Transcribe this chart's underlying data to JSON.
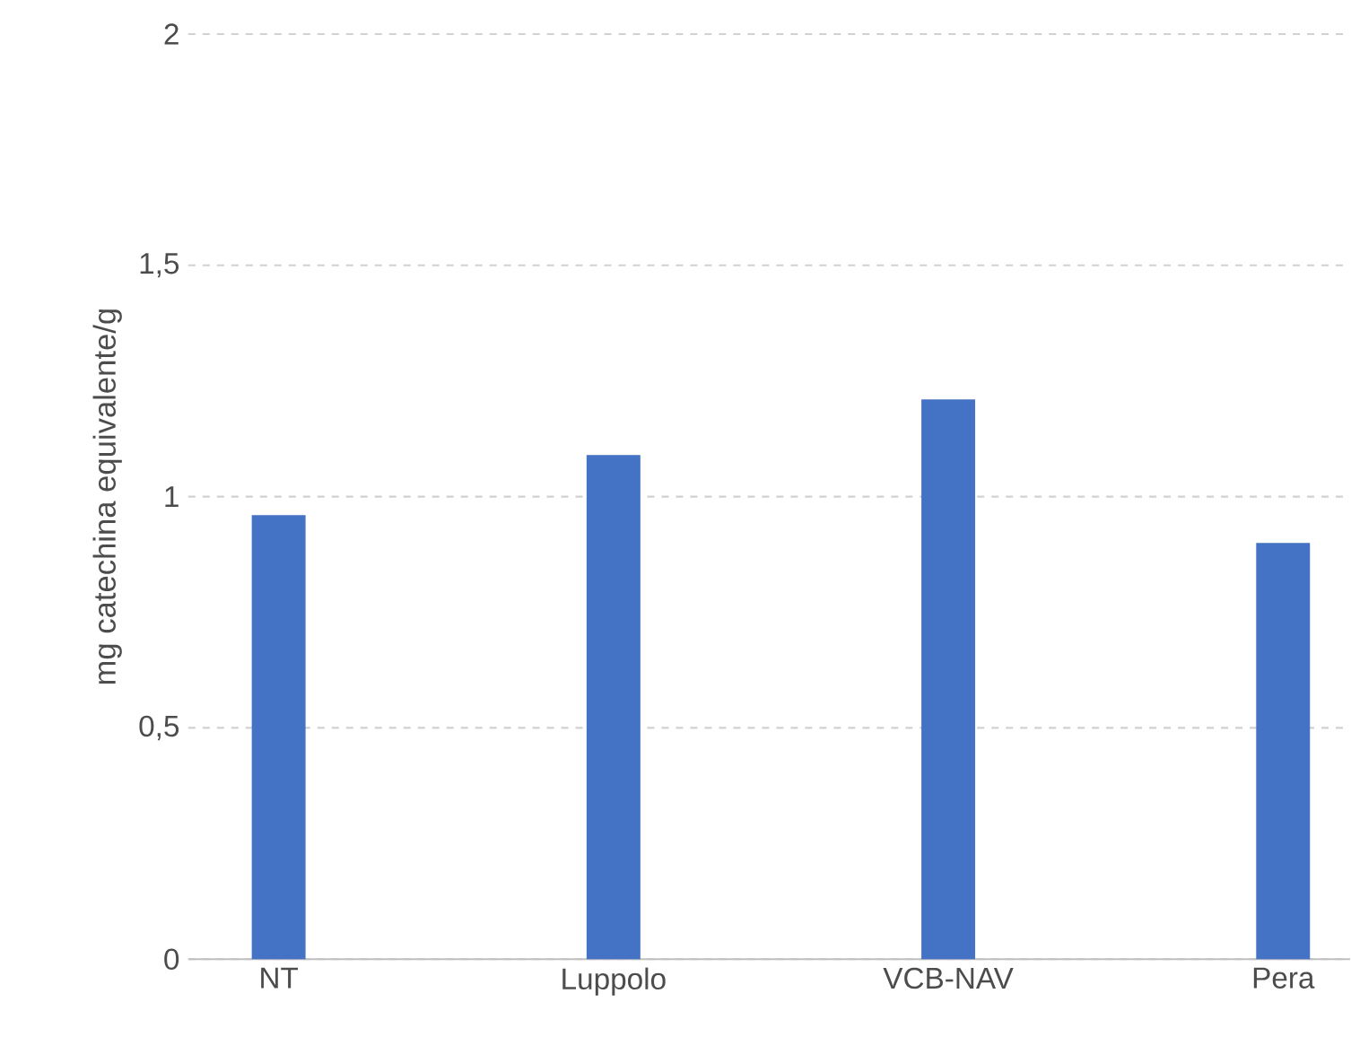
{
  "chart_data": {
    "type": "bar",
    "ylabel": "mg catechina equivalente/g",
    "categories": [
      "NT",
      "Luppolo",
      "VCB-NAV",
      "Pera"
    ],
    "values": [
      0.96,
      1.09,
      1.21,
      0.9
    ],
    "color": "#4472c4",
    "ylim": [
      0,
      2
    ],
    "yticks": [
      0,
      {
        "value": 0.5,
        "label": "0,5"
      },
      1,
      {
        "value": 1.5,
        "label": "1,5"
      },
      2
    ],
    "grid": "y"
  }
}
